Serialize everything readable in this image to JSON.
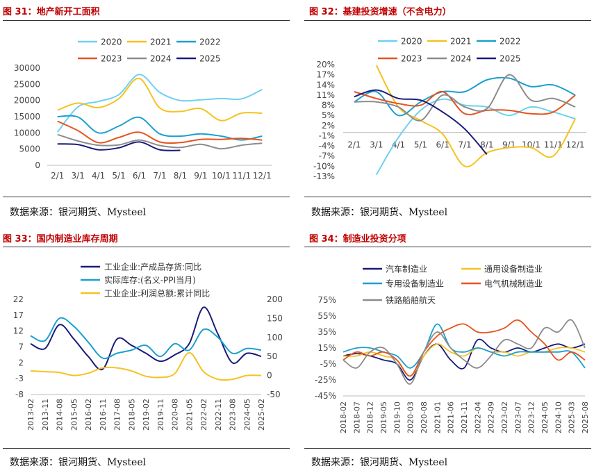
{
  "source_text": "数据来源：银河期货、Mysteel",
  "chart_data": [
    {
      "type": "line",
      "title": "图 31：地产新开工面积",
      "categories": [
        "2/1",
        "3/1",
        "4/1",
        "5/1",
        "6/1",
        "7/1",
        "8/1",
        "9/1",
        "10/1",
        "11/1",
        "12/1"
      ],
      "ylim": [
        0,
        30000
      ],
      "yticks": [
        0,
        5000,
        10000,
        15000,
        20000,
        25000,
        30000
      ],
      "legend": "top",
      "grid": false,
      "series": [
        {
          "name": "2020",
          "color": "#6fd0f0",
          "values": [
            10200,
            18000,
            19700,
            21800,
            28000,
            22500,
            20000,
            20200,
            20600,
            20500,
            23400
          ]
        },
        {
          "name": "2021",
          "color": "#f5c220",
          "values": [
            17000,
            19200,
            17800,
            20600,
            26800,
            17700,
            16600,
            17500,
            13800,
            16100,
            16100
          ]
        },
        {
          "name": "2022",
          "color": "#1aa0cf",
          "values": [
            15000,
            14900,
            10000,
            12100,
            14800,
            9700,
            9000,
            9700,
            9000,
            7800,
            9000
          ]
        },
        {
          "name": "2023",
          "color": "#e8521c",
          "values": [
            13600,
            10700,
            7000,
            8600,
            10200,
            7200,
            7000,
            8000,
            8000,
            8300,
            7800
          ]
        },
        {
          "name": "2024",
          "color": "#8c8c8c",
          "values": [
            9500,
            7500,
            6200,
            6300,
            7800,
            6100,
            5500,
            6500,
            5100,
            6200,
            6800
          ]
        },
        {
          "name": "2025",
          "color": "#1a1a7a",
          "values": [
            6600,
            6400,
            4800,
            5400,
            7200,
            4800,
            4600,
            null,
            null,
            null,
            null
          ]
        }
      ]
    },
    {
      "type": "line",
      "title": "图 32：基建投资增速（不含电力）",
      "categories": [
        "2/1",
        "3/1",
        "4/1",
        "5/1",
        "6/1",
        "7/1",
        "8/1",
        "9/1",
        "10/1",
        "11/1",
        "12/1"
      ],
      "ylim": [
        -13,
        20
      ],
      "yticks": [
        "20%",
        "17%",
        "14%",
        "11%",
        "8%",
        "5%",
        "2%",
        "-1%",
        "-4%",
        "-7%",
        "-10%",
        "-13%"
      ],
      "legend": "top",
      "grid": false,
      "series": [
        {
          "name": "2020",
          "color": "#6fd0f0",
          "values": [
            null,
            -12.5,
            -1.5,
            6.5,
            9.8,
            8.0,
            7.5,
            5.0,
            7.5,
            6.0,
            4.0
          ]
        },
        {
          "name": "2021",
          "color": "#f5c220",
          "values": [
            null,
            19.8,
            7.5,
            3.5,
            -0.5,
            -10.0,
            -6.0,
            -4.5,
            -4.5,
            -7.0,
            4.0
          ]
        },
        {
          "name": "2022",
          "color": "#1aa0cf",
          "values": [
            9.0,
            12.0,
            5.0,
            9.0,
            12.0,
            12.0,
            15.5,
            16.0,
            13.5,
            14.0,
            11.0
          ]
        },
        {
          "name": "2023",
          "color": "#e8521c",
          "values": [
            12.0,
            10.0,
            8.5,
            8.0,
            12.0,
            5.5,
            6.5,
            6.5,
            5.5,
            6.0,
            11.0
          ]
        },
        {
          "name": "2024",
          "color": "#8c8c8c",
          "values": [
            9.0,
            9.0,
            7.5,
            3.5,
            11.0,
            7.5,
            7.0,
            17.0,
            9.5,
            10.0,
            7.5
          ]
        },
        {
          "name": "2025",
          "color": "#1a1a7a",
          "values": [
            10.5,
            12.5,
            10.0,
            9.5,
            6.0,
            1.0,
            -6.5,
            null,
            null,
            null,
            null
          ]
        }
      ]
    },
    {
      "type": "line",
      "title": "图 33：国内制造业库存周期",
      "x": [
        "2013-02",
        "2013-11",
        "2014-08",
        "2015-05",
        "2016-02",
        "2016-11",
        "2017-08",
        "2018-05",
        "2019-02",
        "2019-11",
        "2020-08",
        "2021-05",
        "2022-02",
        "2022-11",
        "2023-08",
        "2024-05",
        "2025-02"
      ],
      "ylim_left": [
        -8,
        22
      ],
      "yticks_left": [
        -8,
        -3,
        2,
        7,
        12,
        17,
        22
      ],
      "ylim_right": [
        -50,
        200
      ],
      "yticks_right": [
        -50,
        0,
        50,
        100,
        150,
        200
      ],
      "legend": "top",
      "grid": false,
      "series": [
        {
          "name": "工业企业:产成品存货:同比",
          "axis": "left",
          "color": "#1a1a7a",
          "values": [
            8.0,
            6.5,
            14.0,
            9.5,
            4.0,
            0.0,
            9.5,
            7.5,
            5.0,
            2.5,
            4.5,
            8.0,
            19.5,
            11.0,
            2.0,
            5.0,
            4.0
          ]
        },
        {
          "name": "实际库存:(名义-PPI当月)",
          "axis": "left",
          "color": "#1aa0cf",
          "values": [
            10.5,
            9.0,
            16.0,
            13.5,
            8.5,
            3.5,
            5.0,
            6.0,
            7.5,
            4.0,
            8.0,
            6.0,
            12.5,
            10.0,
            5.0,
            6.5,
            6.0
          ]
        },
        {
          "name": "工业企业:利润总额:累计同比",
          "axis": "right",
          "color": "#f5c220",
          "values": [
            12.0,
            10.0,
            8.0,
            0.0,
            6.0,
            20.0,
            20.0,
            12.0,
            -2.0,
            -5.0,
            5.0,
            60.0,
            10.0,
            -10.0,
            -10.0,
            0.0,
            0.0
          ]
        }
      ]
    },
    {
      "type": "line",
      "title": "图 34：制造业投资分项",
      "x": [
        "2018-02",
        "2018-07",
        "2018-12",
        "2019-05",
        "2019-10",
        "2020-03",
        "2020-08",
        "2021-01",
        "2021-06",
        "2021-11",
        "2022-04",
        "2022-09",
        "2023-02",
        "2023-07",
        "2023-12",
        "2024-05",
        "2024-10",
        "2025-03",
        "2025-08"
      ],
      "ylim": [
        -45,
        75
      ],
      "yticks": [
        "75%",
        "55%",
        "35%",
        "15%",
        "-5%",
        "-25%",
        "-45%"
      ],
      "legend": "top",
      "grid": false,
      "series": [
        {
          "name": "汽车制造业",
          "color": "#1a1a7a",
          "values": [
            5,
            8,
            5,
            0,
            -5,
            -25,
            5,
            20,
            0,
            -10,
            25,
            15,
            10,
            15,
            10,
            15,
            20,
            15,
            20
          ]
        },
        {
          "name": "通用设备制造业",
          "color": "#f5c220",
          "values": [
            5,
            5,
            10,
            5,
            0,
            -20,
            5,
            20,
            10,
            5,
            15,
            10,
            10,
            5,
            10,
            10,
            15,
            15,
            10
          ]
        },
        {
          "name": "专用设备制造业",
          "color": "#1aa0cf",
          "values": [
            10,
            15,
            15,
            10,
            5,
            -10,
            10,
            45,
            15,
            10,
            15,
            10,
            5,
            10,
            10,
            10,
            10,
            10,
            -10
          ]
        },
        {
          "name": "电气机械制造业",
          "color": "#e8521c",
          "values": [
            0,
            10,
            5,
            10,
            0,
            -20,
            10,
            30,
            40,
            45,
            35,
            35,
            40,
            50,
            35,
            20,
            0,
            10,
            0
          ]
        },
        {
          "name": "铁路船舶航天",
          "color": "#8c8c8c",
          "values": [
            0,
            -10,
            10,
            15,
            -5,
            -30,
            10,
            35,
            15,
            0,
            -10,
            5,
            25,
            20,
            15,
            40,
            35,
            50,
            15
          ]
        }
      ]
    }
  ]
}
